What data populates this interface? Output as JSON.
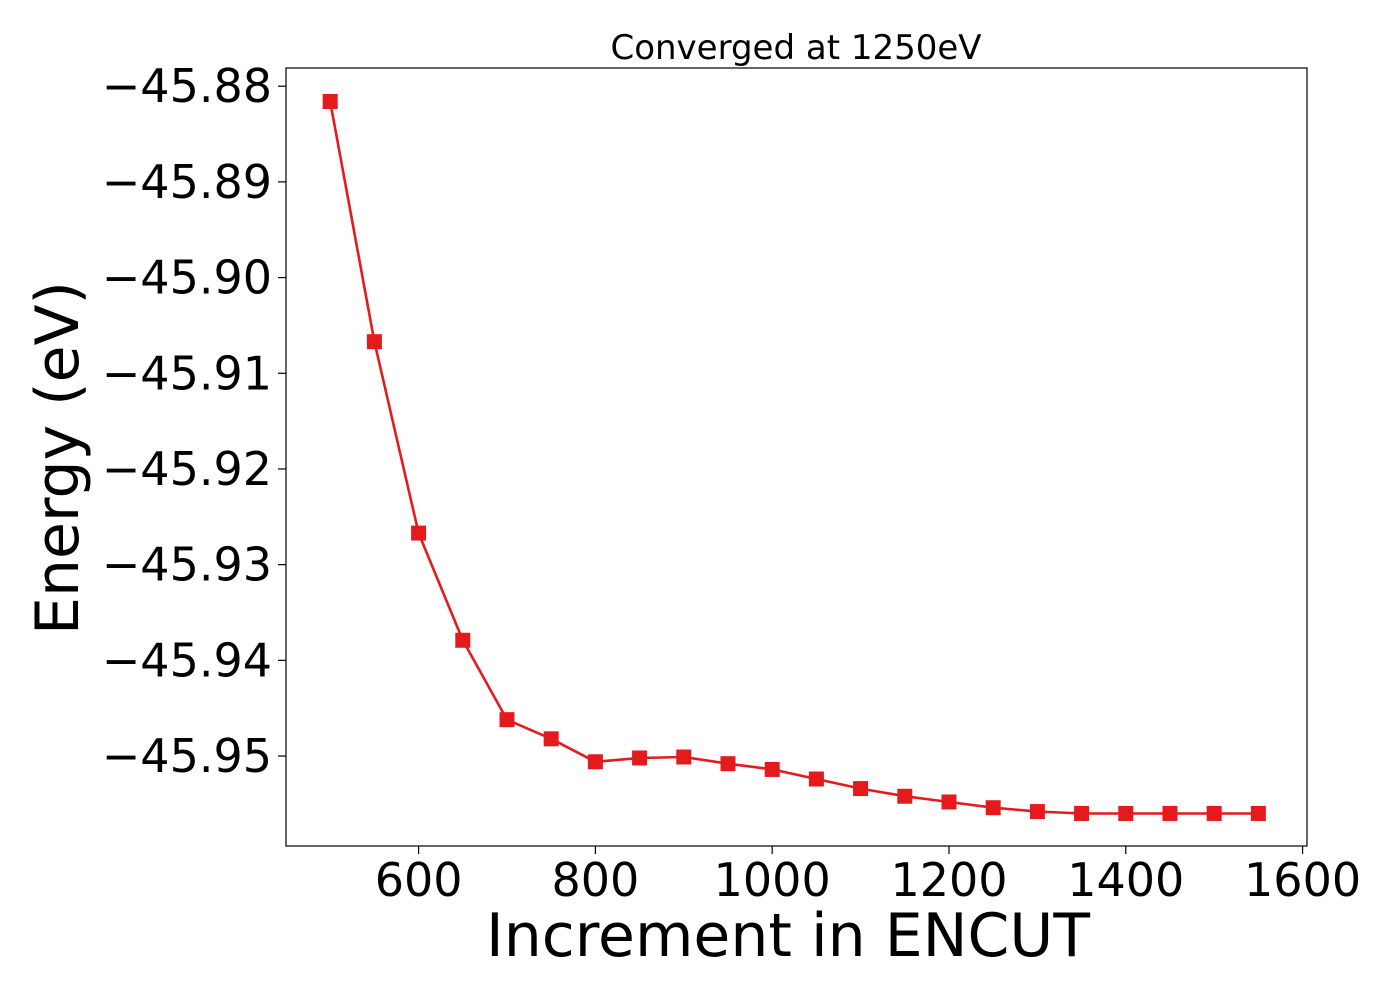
{
  "chart_data": {
    "type": "line",
    "title": "Converged at 1250eV",
    "xlabel": "Increment in ENCUT",
    "ylabel": "Energy (eV)",
    "xlim": [
      450,
      1605
    ],
    "ylim": [
      -45.9594,
      -45.8781
    ],
    "x_ticks": [
      600,
      800,
      1000,
      1200,
      1400,
      1600
    ],
    "x_tick_labels": [
      "600",
      "800",
      "1000",
      "1200",
      "1400",
      "1600"
    ],
    "y_ticks": [
      -45.88,
      -45.89,
      -45.9,
      -45.91,
      -45.92,
      -45.93,
      -45.94,
      -45.95
    ],
    "y_tick_labels": [
      "−45.88",
      "−45.89",
      "−45.90",
      "−45.91",
      "−45.92",
      "−45.93",
      "−45.94",
      "−45.95"
    ],
    "grid": false,
    "series": [
      {
        "color": "#e41a1c",
        "marker": "square",
        "x": [
          500,
          550,
          600,
          650,
          700,
          750,
          800,
          850,
          900,
          950,
          1000,
          1050,
          1100,
          1150,
          1200,
          1250,
          1300,
          1350,
          1400,
          1450,
          1500,
          1550
        ],
        "y": [
          -45.8816,
          -45.9067,
          -45.9267,
          -45.9379,
          -45.9462,
          -45.9482,
          -45.9506,
          -45.9502,
          -45.9501,
          -45.9508,
          -45.9514,
          -45.9524,
          -45.9534,
          -45.9542,
          -45.9548,
          -45.9554,
          -45.9558,
          -45.956,
          -45.956,
          -45.956,
          -45.956,
          -45.956
        ]
      }
    ]
  }
}
